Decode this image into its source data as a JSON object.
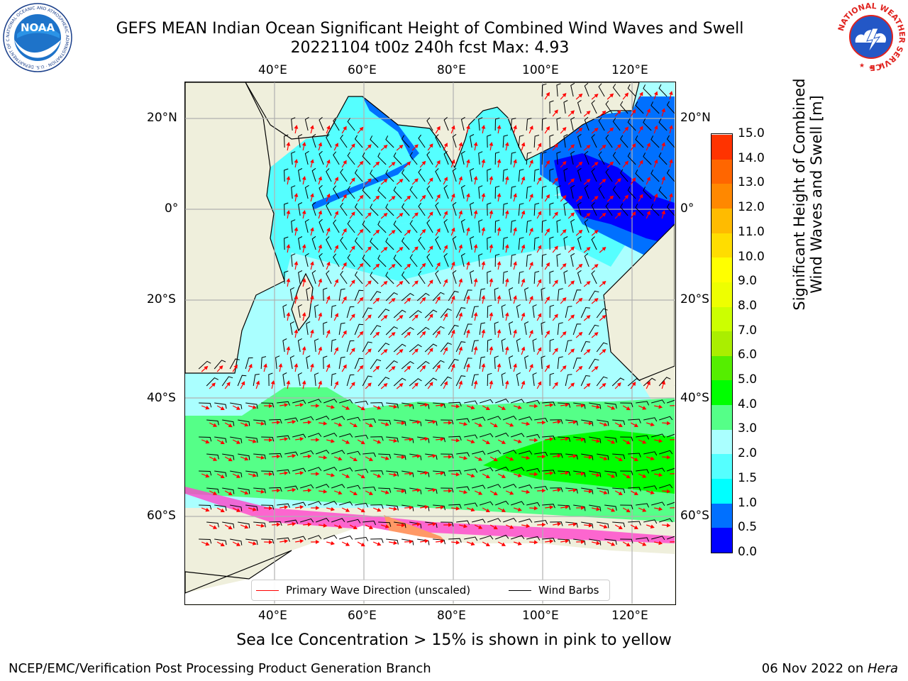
{
  "header": {
    "title_line1": "GEFS MEAN Indian Ocean Significant Height of Combined Wind Waves and Swell",
    "title_line2": "20221104 t00z 240h fcst   Max: 4.93"
  },
  "logos": {
    "left": {
      "text": "NOAA",
      "ring_text": "NATIONAL OCEANIC AND ATMOSPHERIC ADMINISTRATION · U.S. DEPARTMENT OF COMMERCE"
    },
    "right": {
      "ring_text": "NATIONAL WEATHER SERVICE"
    }
  },
  "map": {
    "lon_ticks_top": [
      "40°E",
      "60°E",
      "80°E",
      "100°E",
      "120°E"
    ],
    "lon_ticks_bottom": [
      "40°E",
      "60°E",
      "80°E",
      "100°E",
      "120°E"
    ],
    "lat_ticks_left": [
      "20°N",
      "0°",
      "20°S",
      "40°S",
      "60°S"
    ],
    "lat_ticks_right": [
      "20°N",
      "0°",
      "20°S",
      "40°S",
      "60°S"
    ],
    "colors": {
      "land": "#efefdc",
      "grid": "#b0b0b0",
      "wave_arrow": "#ff0000",
      "barb": "#000000"
    }
  },
  "colorbar": {
    "label_line1": "Significant Height of Combined",
    "label_line2": "Wind Waves and Swell [m]",
    "ticks": [
      "0.0",
      "0.5",
      "1.0",
      "1.5",
      "2.0",
      "3.0",
      "4.0",
      "5.0",
      "6.0",
      "7.0",
      "8.0",
      "9.0",
      "10.0",
      "11.0",
      "12.0",
      "13.0",
      "14.0",
      "15.0"
    ],
    "colors": [
      "#0000ff",
      "#0070ff",
      "#00ffff",
      "#55ffff",
      "#aaffff",
      "#55ff88",
      "#00ff00",
      "#55ee00",
      "#aaee00",
      "#ccff00",
      "#eeff00",
      "#ffff00",
      "#ffdd00",
      "#ffbb00",
      "#ff8800",
      "#ff6600",
      "#ff3300",
      "#ff0000"
    ]
  },
  "legend": {
    "primary_wave": "Primary Wave Direction (unscaled)",
    "wind_barbs": "Wind Barbs"
  },
  "captions": {
    "sea_ice": "Sea Ice Concentration > 15% is shown in pink to yellow"
  },
  "footer": {
    "left": "NCEP/EMC/Verification Post Processing Product Generation Branch",
    "date": "06 Nov 2022 on ",
    "machine": "Hera"
  }
}
